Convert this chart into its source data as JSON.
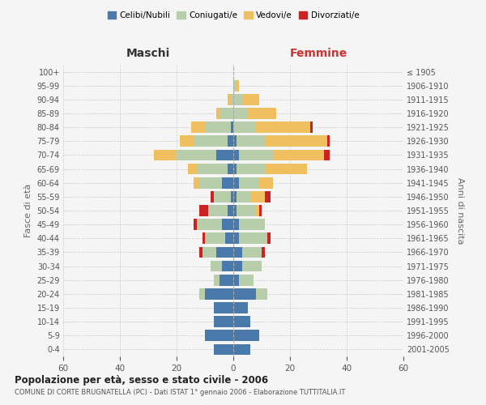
{
  "age_groups": [
    "0-4",
    "5-9",
    "10-14",
    "15-19",
    "20-24",
    "25-29",
    "30-34",
    "35-39",
    "40-44",
    "45-49",
    "50-54",
    "55-59",
    "60-64",
    "65-69",
    "70-74",
    "75-79",
    "80-84",
    "85-89",
    "90-94",
    "95-99",
    "100+"
  ],
  "birth_years": [
    "2001-2005",
    "1996-2000",
    "1991-1995",
    "1986-1990",
    "1981-1985",
    "1976-1980",
    "1971-1975",
    "1966-1970",
    "1961-1965",
    "1956-1960",
    "1951-1955",
    "1946-1950",
    "1941-1945",
    "1936-1940",
    "1931-1935",
    "1926-1930",
    "1921-1925",
    "1916-1920",
    "1911-1915",
    "1906-1910",
    "≤ 1905"
  ],
  "male": {
    "celibi": [
      7,
      10,
      7,
      7,
      10,
      5,
      4,
      6,
      3,
      4,
      2,
      1,
      4,
      2,
      6,
      2,
      1,
      0,
      0,
      0,
      0
    ],
    "coniugati": [
      0,
      0,
      0,
      0,
      2,
      2,
      4,
      5,
      7,
      9,
      7,
      6,
      8,
      11,
      14,
      12,
      9,
      5,
      1,
      0,
      0
    ],
    "vedovi": [
      0,
      0,
      0,
      0,
      0,
      0,
      0,
      0,
      0,
      0,
      0,
      0,
      2,
      3,
      8,
      5,
      5,
      1,
      1,
      0,
      0
    ],
    "divorziati": [
      0,
      0,
      0,
      0,
      0,
      0,
      0,
      1,
      1,
      1,
      3,
      1,
      0,
      0,
      0,
      0,
      0,
      0,
      0,
      0,
      0
    ]
  },
  "female": {
    "nubili": [
      6,
      9,
      6,
      5,
      8,
      2,
      3,
      3,
      2,
      2,
      1,
      1,
      2,
      1,
      2,
      1,
      0,
      0,
      0,
      0,
      0
    ],
    "coniugate": [
      0,
      0,
      0,
      0,
      4,
      5,
      7,
      7,
      10,
      9,
      7,
      5,
      7,
      10,
      12,
      10,
      8,
      5,
      3,
      1,
      0
    ],
    "vedove": [
      0,
      0,
      0,
      0,
      0,
      0,
      0,
      0,
      0,
      0,
      1,
      5,
      5,
      15,
      18,
      22,
      19,
      10,
      6,
      1,
      0
    ],
    "divorziate": [
      0,
      0,
      0,
      0,
      0,
      0,
      0,
      1,
      1,
      0,
      1,
      2,
      0,
      0,
      2,
      1,
      1,
      0,
      0,
      0,
      0
    ]
  },
  "colors": {
    "celibi": "#4a7aab",
    "coniugati": "#b8ceaa",
    "vedovi": "#f0c060",
    "divorziati": "#cc2222"
  },
  "title": "Popolazione per età, sesso e stato civile - 2006",
  "subtitle": "COMUNE DI CORTE BRUGNATELLA (PC) - Dati ISTAT 1° gennaio 2006 - Elaborazione TUTTITALIA.IT",
  "label_maschi": "Maschi",
  "label_femmine": "Femmine",
  "ylabel_left": "Fasce di età",
  "ylabel_right": "Anni di nascita",
  "xlim": 60,
  "legend_labels": [
    "Celibi/Nubili",
    "Coniugati/e",
    "Vedovi/e",
    "Divorziati/e"
  ],
  "bg_color": "#f5f5f5",
  "bar_height": 0.8
}
